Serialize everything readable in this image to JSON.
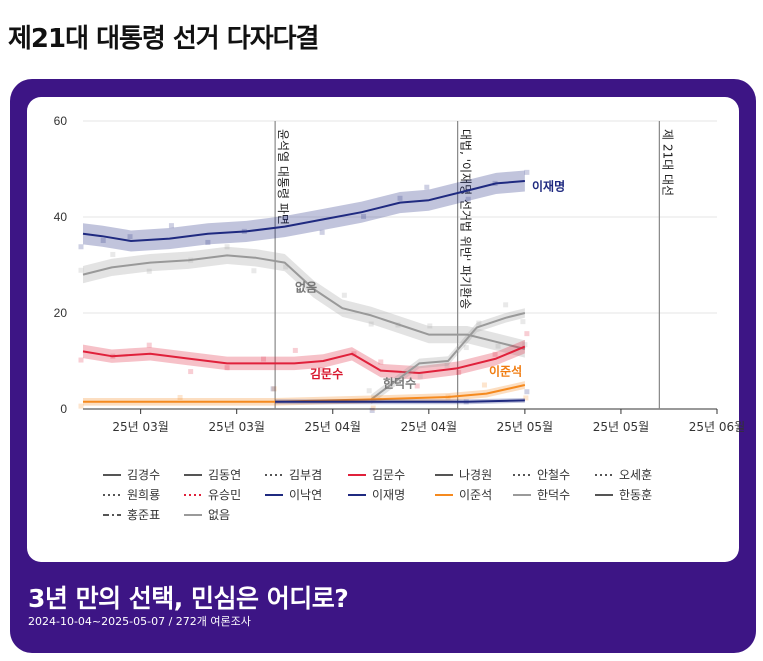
{
  "page_title": "제21대 대통령 선거 다자다결",
  "card": {
    "headline": "3년 만의 선택, 민심은 어디로?",
    "subtitle": "2024-10-04~2025-05-07 / 272개 여론조사"
  },
  "chart_data": {
    "type": "line",
    "title": "제21대 대통령 선거 다자다결",
    "ylim": [
      0,
      60
    ],
    "yticks": [
      0,
      20,
      40,
      60
    ],
    "x_tick_labels": [
      "25년 03월",
      "25년 03월",
      "25년 04월",
      "25년 04월",
      "25년 05월",
      "25년 05월",
      "25년 06월"
    ],
    "events": [
      {
        "label": "윤석열 대통령 파면",
        "x": 0.4
      },
      {
        "label": "대법, '이재명 선거법 위반' 파기환송",
        "x": 0.78
      },
      {
        "label": "제 21대 대선",
        "x": 1.2
      }
    ],
    "series": [
      {
        "name": "이재명",
        "color": "#1f2a80",
        "label": "이재명",
        "label_color": "#1f2a80",
        "x": [
          0,
          0.04,
          0.1,
          0.18,
          0.26,
          0.34,
          0.42,
          0.5,
          0.58,
          0.66,
          0.72,
          0.8,
          0.86,
          0.92
        ],
        "values": [
          36.5,
          36,
          35,
          35.5,
          36.5,
          37,
          38,
          39.5,
          41,
          43,
          43.5,
          45.5,
          47,
          47.5
        ]
      },
      {
        "name": "없음",
        "color": "#999999",
        "label": "없음",
        "label_color": "#777777",
        "x": [
          0,
          0.06,
          0.14,
          0.22,
          0.3,
          0.36,
          0.42,
          0.48,
          0.54,
          0.6,
          0.66,
          0.72,
          0.8,
          0.86,
          0.92
        ],
        "values": [
          28,
          29.5,
          30.5,
          31,
          32,
          31.5,
          30.5,
          25,
          21,
          19.5,
          17.5,
          15.5,
          15.5,
          14,
          12.5
        ]
      },
      {
        "name": "김문수",
        "color": "#e0213b",
        "label": "김문수",
        "label_color": "#d8182e",
        "x": [
          0,
          0.06,
          0.14,
          0.22,
          0.3,
          0.38,
          0.44,
          0.5,
          0.56,
          0.62,
          0.7,
          0.78,
          0.86,
          0.92
        ],
        "values": [
          12,
          11,
          11.5,
          10.5,
          9.5,
          9.5,
          9.5,
          10,
          11.5,
          8,
          7.5,
          8.5,
          10.5,
          13
        ]
      },
      {
        "name": "한덕수",
        "color": "#9a9a9a",
        "label": "한덕수",
        "label_color": "#777777",
        "x": [
          0.6,
          0.7,
          0.76,
          0.82,
          0.88,
          0.92
        ],
        "values": [
          2,
          9.5,
          10,
          17,
          19,
          20
        ]
      },
      {
        "name": "이준석",
        "color": "#f58a1f",
        "label": "이준석",
        "label_color": "#f07c10",
        "x": [
          0,
          0.2,
          0.4,
          0.6,
          0.76,
          0.84,
          0.92
        ],
        "values": [
          1.5,
          1.5,
          1.5,
          2,
          2.5,
          3.2,
          5
        ]
      },
      {
        "name": "이낙연",
        "color": "#1f2a80",
        "label": "",
        "label_color": "#1f2a80",
        "x": [
          0.4,
          0.6,
          0.8,
          0.92
        ],
        "values": [
          1.5,
          1.5,
          1.5,
          1.8
        ]
      }
    ],
    "legend": [
      {
        "name": "김경수",
        "style": "solid",
        "color": "#555555"
      },
      {
        "name": "김동연",
        "style": "solid",
        "color": "#555555"
      },
      {
        "name": "김부겸",
        "style": "dotted",
        "color": "#555555"
      },
      {
        "name": "김문수",
        "style": "solid",
        "color": "#e0213b"
      },
      {
        "name": "나경원",
        "style": "solid",
        "color": "#555555"
      },
      {
        "name": "안철수",
        "style": "dotted",
        "color": "#555555"
      },
      {
        "name": "오세훈",
        "style": "dotted",
        "color": "#555555"
      },
      {
        "name": "원희룡",
        "style": "dotted",
        "color": "#555555"
      },
      {
        "name": "유승민",
        "style": "dotted",
        "color": "#e0213b"
      },
      {
        "name": "이낙연",
        "style": "solid",
        "color": "#1f2a80"
      },
      {
        "name": "이재명",
        "style": "solid",
        "color": "#1f2a80"
      },
      {
        "name": "이준석",
        "style": "solid",
        "color": "#f58a1f"
      },
      {
        "name": "한덕수",
        "style": "solid",
        "color": "#9a9a9a"
      },
      {
        "name": "한동훈",
        "style": "solid",
        "color": "#555555"
      },
      {
        "name": "홍준표",
        "style": "dashdot",
        "color": "#555555"
      },
      {
        "name": "없음",
        "style": "solid",
        "color": "#9a9a9a"
      }
    ]
  }
}
